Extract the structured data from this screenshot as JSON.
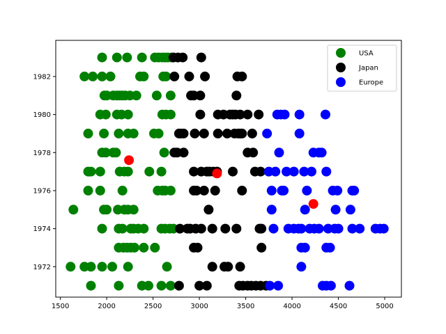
{
  "chart_data": {
    "type": "scatter",
    "xlim": [
      1450,
      5180
    ],
    "ylim": [
      1970.4,
      1983.9
    ],
    "xticks": [
      "1500",
      "2000",
      "2500",
      "3000",
      "3500",
      "4000",
      "4500",
      "5000"
    ],
    "yticks": [
      "1972",
      "1974",
      "1976",
      "1978",
      "1980",
      "1982"
    ],
    "grid": false,
    "legend_position": "top-right",
    "series": [
      {
        "name": "USA",
        "color": "#008000",
        "points": [
          [
            1950,
            1983
          ],
          [
            2110,
            1983
          ],
          [
            2220,
            1983
          ],
          [
            2380,
            1983
          ],
          [
            2520,
            1983
          ],
          [
            2560,
            1983
          ],
          [
            2600,
            1983
          ],
          [
            2630,
            1983
          ],
          [
            2660,
            1983
          ],
          [
            2700,
            1983
          ],
          [
            1760,
            1982
          ],
          [
            1850,
            1982
          ],
          [
            1950,
            1982
          ],
          [
            2040,
            1982
          ],
          [
            2360,
            1982
          ],
          [
            2400,
            1982
          ],
          [
            2610,
            1982
          ],
          [
            2640,
            1982
          ],
          [
            1975,
            1981
          ],
          [
            2000,
            1981
          ],
          [
            2070,
            1981
          ],
          [
            2110,
            1981
          ],
          [
            2140,
            1981
          ],
          [
            2170,
            1981
          ],
          [
            2200,
            1981
          ],
          [
            2250,
            1981
          ],
          [
            2320,
            1981
          ],
          [
            2540,
            1981
          ],
          [
            2690,
            1981
          ],
          [
            1930,
            1980
          ],
          [
            1990,
            1980
          ],
          [
            2110,
            1980
          ],
          [
            2160,
            1980
          ],
          [
            2230,
            1980
          ],
          [
            2600,
            1980
          ],
          [
            2640,
            1980
          ],
          [
            2690,
            1980
          ],
          [
            1800,
            1979
          ],
          [
            1970,
            1979
          ],
          [
            2130,
            1979
          ],
          [
            2230,
            1979
          ],
          [
            2290,
            1979
          ],
          [
            2510,
            1979
          ],
          [
            2560,
            1979
          ],
          [
            1950,
            1978
          ],
          [
            1990,
            1978
          ],
          [
            2070,
            1978
          ],
          [
            2100,
            1978
          ],
          [
            2620,
            1978
          ],
          [
            1800,
            1977
          ],
          [
            1830,
            1977
          ],
          [
            1930,
            1977
          ],
          [
            2140,
            1977
          ],
          [
            2190,
            1977
          ],
          [
            2230,
            1977
          ],
          [
            2460,
            1977
          ],
          [
            2590,
            1977
          ],
          [
            1800,
            1976
          ],
          [
            1930,
            1976
          ],
          [
            2170,
            1976
          ],
          [
            2550,
            1976
          ],
          [
            2600,
            1976
          ],
          [
            2630,
            1976
          ],
          [
            2690,
            1976
          ],
          [
            1640,
            1975
          ],
          [
            1970,
            1975
          ],
          [
            2000,
            1975
          ],
          [
            2120,
            1975
          ],
          [
            2190,
            1975
          ],
          [
            2230,
            1975
          ],
          [
            2290,
            1975
          ],
          [
            1950,
            1974
          ],
          [
            2130,
            1974
          ],
          [
            2170,
            1974
          ],
          [
            2260,
            1974
          ],
          [
            2290,
            1974
          ],
          [
            2340,
            1974
          ],
          [
            2400,
            1974
          ],
          [
            2590,
            1974
          ],
          [
            2630,
            1974
          ],
          [
            2680,
            1974
          ],
          [
            2720,
            1974
          ],
          [
            2130,
            1973
          ],
          [
            2180,
            1973
          ],
          [
            2220,
            1973
          ],
          [
            2260,
            1973
          ],
          [
            2300,
            1973
          ],
          [
            2400,
            1973
          ],
          [
            2520,
            1973
          ],
          [
            1610,
            1972
          ],
          [
            1760,
            1972
          ],
          [
            1830,
            1972
          ],
          [
            1950,
            1972
          ],
          [
            2060,
            1972
          ],
          [
            2230,
            1972
          ],
          [
            2650,
            1972
          ],
          [
            1830,
            1971
          ],
          [
            2130,
            1971
          ],
          [
            2380,
            1971
          ],
          [
            2450,
            1971
          ],
          [
            2590,
            1971
          ],
          [
            2690,
            1971
          ]
        ]
      },
      {
        "name": "Japan",
        "color": "#000000",
        "points": [
          [
            2720,
            1983
          ],
          [
            2770,
            1983
          ],
          [
            2820,
            1983
          ],
          [
            3020,
            1983
          ],
          [
            2730,
            1982
          ],
          [
            2890,
            1982
          ],
          [
            3060,
            1982
          ],
          [
            3410,
            1982
          ],
          [
            3460,
            1982
          ],
          [
            2910,
            1981
          ],
          [
            2940,
            1981
          ],
          [
            3010,
            1981
          ],
          [
            3400,
            1981
          ],
          [
            3010,
            1980
          ],
          [
            3200,
            1980
          ],
          [
            3260,
            1980
          ],
          [
            3330,
            1980
          ],
          [
            3360,
            1980
          ],
          [
            3390,
            1980
          ],
          [
            3440,
            1980
          ],
          [
            3520,
            1980
          ],
          [
            3640,
            1980
          ],
          [
            2780,
            1979
          ],
          [
            2800,
            1979
          ],
          [
            2830,
            1979
          ],
          [
            2950,
            1979
          ],
          [
            3050,
            1979
          ],
          [
            3200,
            1979
          ],
          [
            3300,
            1979
          ],
          [
            3380,
            1979
          ],
          [
            3420,
            1979
          ],
          [
            3440,
            1979
          ],
          [
            3460,
            1979
          ],
          [
            3570,
            1979
          ],
          [
            2730,
            1978
          ],
          [
            2760,
            1978
          ],
          [
            2830,
            1978
          ],
          [
            3520,
            1978
          ],
          [
            3580,
            1978
          ],
          [
            2940,
            1977
          ],
          [
            3020,
            1977
          ],
          [
            3080,
            1977
          ],
          [
            3110,
            1977
          ],
          [
            3150,
            1977
          ],
          [
            3190,
            1977
          ],
          [
            3360,
            1977
          ],
          [
            3600,
            1977
          ],
          [
            3660,
            1977
          ],
          [
            2940,
            1976
          ],
          [
            2970,
            1976
          ],
          [
            3050,
            1976
          ],
          [
            3170,
            1976
          ],
          [
            3460,
            1976
          ],
          [
            3100,
            1975
          ],
          [
            2790,
            1974
          ],
          [
            2870,
            1974
          ],
          [
            2900,
            1974
          ],
          [
            2960,
            1974
          ],
          [
            3020,
            1974
          ],
          [
            3140,
            1974
          ],
          [
            3280,
            1974
          ],
          [
            3400,
            1974
          ],
          [
            3650,
            1974
          ],
          [
            3670,
            1974
          ],
          [
            2940,
            1973
          ],
          [
            2980,
            1973
          ],
          [
            3670,
            1973
          ],
          [
            3140,
            1972
          ],
          [
            3270,
            1972
          ],
          [
            3310,
            1972
          ],
          [
            3440,
            1972
          ],
          [
            2780,
            1971
          ],
          [
            3000,
            1971
          ],
          [
            3080,
            1971
          ],
          [
            3430,
            1971
          ],
          [
            3470,
            1971
          ],
          [
            3520,
            1971
          ],
          [
            3560,
            1971
          ],
          [
            3610,
            1971
          ],
          [
            3660,
            1971
          ],
          [
            3720,
            1971
          ]
        ]
      },
      {
        "name": "Europe",
        "color": "#0000FF",
        "points": [
          [
            3840,
            1980
          ],
          [
            3880,
            1980
          ],
          [
            3920,
            1980
          ],
          [
            4080,
            1980
          ],
          [
            4360,
            1980
          ],
          [
            3730,
            1979
          ],
          [
            4080,
            1979
          ],
          [
            3860,
            1978
          ],
          [
            4230,
            1978
          ],
          [
            4290,
            1978
          ],
          [
            4320,
            1978
          ],
          [
            3750,
            1977
          ],
          [
            3820,
            1977
          ],
          [
            3940,
            1977
          ],
          [
            4020,
            1977
          ],
          [
            4130,
            1977
          ],
          [
            4210,
            1977
          ],
          [
            4370,
            1977
          ],
          [
            3780,
            1976
          ],
          [
            3890,
            1976
          ],
          [
            3910,
            1976
          ],
          [
            4160,
            1976
          ],
          [
            4440,
            1976
          ],
          [
            4490,
            1976
          ],
          [
            4650,
            1976
          ],
          [
            4670,
            1976
          ],
          [
            3780,
            1975
          ],
          [
            4140,
            1975
          ],
          [
            4470,
            1975
          ],
          [
            4630,
            1975
          ],
          [
            3800,
            1974
          ],
          [
            3960,
            1974
          ],
          [
            4020,
            1974
          ],
          [
            4070,
            1974
          ],
          [
            4100,
            1974
          ],
          [
            4190,
            1974
          ],
          [
            4240,
            1974
          ],
          [
            4290,
            1974
          ],
          [
            4390,
            1974
          ],
          [
            4460,
            1974
          ],
          [
            4500,
            1974
          ],
          [
            4650,
            1974
          ],
          [
            4730,
            1974
          ],
          [
            4900,
            1974
          ],
          [
            4950,
            1974
          ],
          [
            4990,
            1974
          ],
          [
            4100,
            1973
          ],
          [
            4140,
            1973
          ],
          [
            4370,
            1973
          ],
          [
            4410,
            1973
          ],
          [
            4100,
            1972
          ],
          [
            3760,
            1971
          ],
          [
            3850,
            1971
          ],
          [
            4330,
            1971
          ],
          [
            4370,
            1971
          ],
          [
            4420,
            1971
          ],
          [
            4620,
            1971
          ]
        ]
      },
      {
        "color": "#FF0000",
        "points": [
          [
            2240,
            1977.6
          ],
          [
            3190,
            1976.9
          ],
          [
            4230,
            1975.3
          ]
        ]
      }
    ]
  }
}
